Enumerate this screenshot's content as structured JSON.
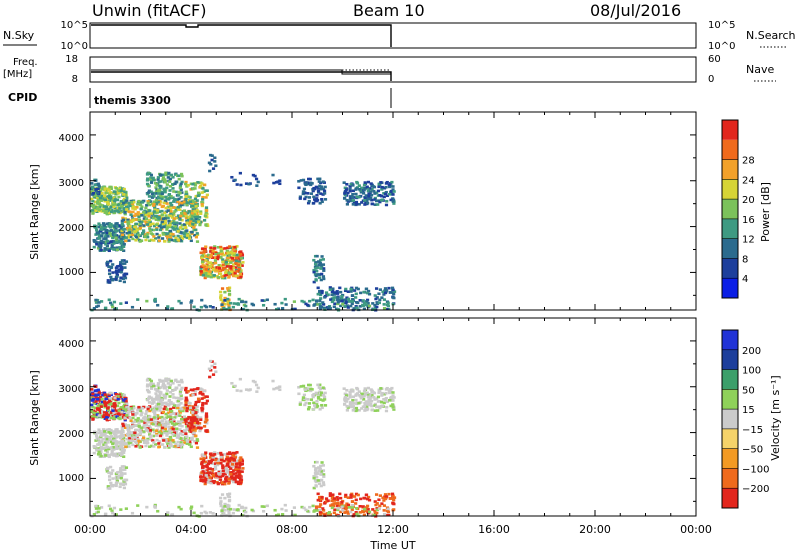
{
  "header": {
    "station": "Unwin (fitACF)",
    "beam": "Beam 10",
    "date": "08/Jul/2016"
  },
  "colors": {
    "power_scale": [
      "#0b1fe6",
      "#1d3f9c",
      "#2b6b8e",
      "#3e9a82",
      "#7bc25b",
      "#d6d436",
      "#f2a12a",
      "#ef6a1c",
      "#e2261d"
    ],
    "velocity_scale": [
      "#e2261d",
      "#ef6a1c",
      "#f39a24",
      "#f5d36a",
      "#cbcbcb",
      "#8fd15a",
      "#3c9f6a",
      "#1d3f9c",
      "#2133d6"
    ]
  },
  "chart_data": [
    {
      "type": "line",
      "name": "noise-panel",
      "label_left": "N.Sky",
      "label_right": "N.Search",
      "yticks_left": [
        "10^5",
        "10^0"
      ],
      "yticks_right": [
        "10^5",
        "10^0"
      ],
      "x": [
        "00:00",
        "12:00"
      ],
      "values": [
        5,
        5
      ]
    },
    {
      "type": "line",
      "name": "frequency-panel",
      "label_left": "Freq.",
      "label_left_unit": "[MHz]",
      "label_right": "Nave",
      "yticks_left": [
        "18",
        "8"
      ],
      "yticks_right": [
        "60",
        "0"
      ],
      "freq_mhz": 10.5,
      "nave": [
        12,
        8
      ]
    },
    {
      "type": "table",
      "name": "cpid-panel",
      "label": "CPID",
      "value": "themis 3300"
    },
    {
      "type": "heatmap",
      "name": "power-panel",
      "ylabel": "Slant Range [km]",
      "yticks": [
        "1000",
        "2000",
        "3000",
        "4000"
      ],
      "ylim": [
        180,
        4500
      ],
      "colorbar_label": "Power [dB]",
      "colorbar_ticks": [
        "4",
        "8",
        "12",
        "16",
        "20",
        "24",
        "28"
      ],
      "colorbar_range": [
        0,
        30
      ],
      "data_hours": [
        0,
        12
      ]
    },
    {
      "type": "heatmap",
      "name": "velocity-panel",
      "ylabel": "Slant Range [km]",
      "yticks": [
        "1000",
        "2000",
        "3000",
        "4000"
      ],
      "ylim": [
        180,
        4500
      ],
      "colorbar_label": "Velocity [m s⁻¹]",
      "colorbar_ticks": [
        "200",
        "100",
        "50",
        "15",
        "−15",
        "−50",
        "−100",
        "−200"
      ],
      "colorbar_range": [
        -250,
        250
      ],
      "xlabel": "Time UT",
      "xticks": [
        "00:00",
        "04:00",
        "08:00",
        "12:00",
        "16:00",
        "20:00",
        "00:00"
      ],
      "xlim_hours": [
        0,
        24
      ]
    }
  ]
}
